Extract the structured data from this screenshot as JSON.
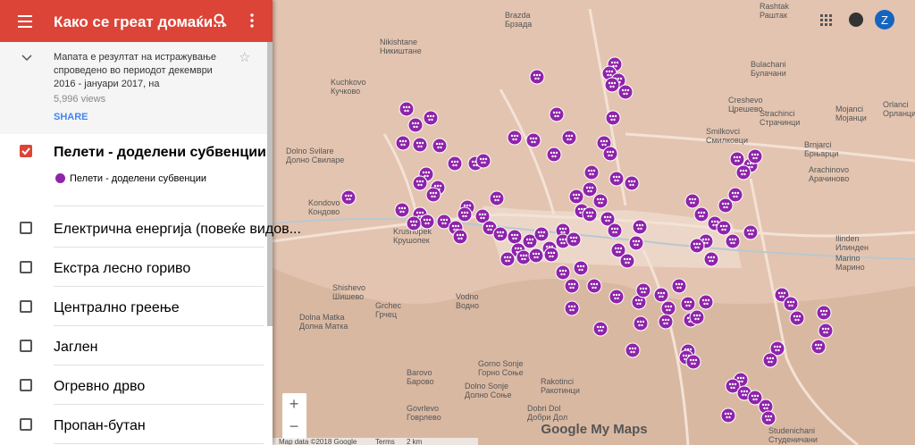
{
  "header": {
    "title": "Како се греат домаќи..."
  },
  "map_info": {
    "description": "Мапата е резултат на истражување спроведено во периодот декември 2016 - јануари 2017, на",
    "views": "5,996 views",
    "share": "SHARE"
  },
  "layers": [
    {
      "label": "Пелети - доделени субвенции",
      "checked": true,
      "sublayer": "Пелети - доделени субвенции"
    },
    {
      "label": "Електрична енергија (повеќе видов...",
      "checked": false
    },
    {
      "label": "Екстра лесно гориво",
      "checked": false
    },
    {
      "label": "Централно греење",
      "checked": false
    },
    {
      "label": "Јаглен",
      "checked": false
    },
    {
      "label": "Огревно дрво",
      "checked": false
    },
    {
      "label": "Пропан-бутан",
      "checked": false
    }
  ],
  "map": {
    "places": [
      {
        "latin": "Rashtak",
        "cyrillic": "Раштак"
      },
      {
        "latin": "Brazda",
        "cyrillic": "Брзада"
      },
      {
        "latin": "Nikishtane",
        "cyrillic": "Никиштане"
      },
      {
        "latin": "Bulachani",
        "cyrillic": "Булачани"
      },
      {
        "latin": "Kuchkovo",
        "cyrillic": "Кучково"
      },
      {
        "latin": "Creshevo",
        "cyrillic": "Црешево"
      },
      {
        "latin": "Strachinci",
        "cyrillic": "Страчинци"
      },
      {
        "latin": "Mojanci",
        "cyrillic": "Мојанци"
      },
      {
        "latin": "Orlanci",
        "cyrillic": "Орланци"
      },
      {
        "latin": "Smilkovci",
        "cyrillic": "Смилковци"
      },
      {
        "latin": "Brnjarci",
        "cyrillic": "Брњарци"
      },
      {
        "latin": "Arachinovo",
        "cyrillic": "Арачиново"
      },
      {
        "latin": "Dolno Svilare",
        "cyrillic": "Долно Свиларе"
      },
      {
        "latin": "Kondovo",
        "cyrillic": "Кондово"
      },
      {
        "latin": "Krushopek",
        "cyrillic": "Крушопек"
      },
      {
        "latin": "Shishevo",
        "cyrillic": "Шишево"
      },
      {
        "latin": "Grchec",
        "cyrillic": "Грчец"
      },
      {
        "latin": "Dolna Matka",
        "cyrillic": "Долна Матка"
      },
      {
        "latin": "Vodno",
        "cyrillic": "Водно"
      },
      {
        "latin": "Ilinden",
        "cyrillic": "Илинден"
      },
      {
        "latin": "Marino",
        "cyrillic": "Марино"
      },
      {
        "latin": "Barovo",
        "cyrillic": "Барово"
      },
      {
        "latin": "Gorno Sonje",
        "cyrillic": "Горно Соње"
      },
      {
        "latin": "Dolno Sonje",
        "cyrillic": "Долно Соње"
      },
      {
        "latin": "Rakotinci",
        "cyrillic": "Ракотинци"
      },
      {
        "latin": "Govrlevo",
        "cyrillic": "Говрлево"
      },
      {
        "latin": "Dobri Dol",
        "cyrillic": "Добри Дол"
      },
      {
        "latin": "Studenichani",
        "cyrillic": "Студеничани"
      }
    ],
    "logo": "Google My Maps",
    "attribution": "Map data ©2018 Google",
    "terms": "Terms",
    "scale": "2 km",
    "zoom_in": "+",
    "zoom_out": "−"
  },
  "account": {
    "initial": "Z"
  }
}
